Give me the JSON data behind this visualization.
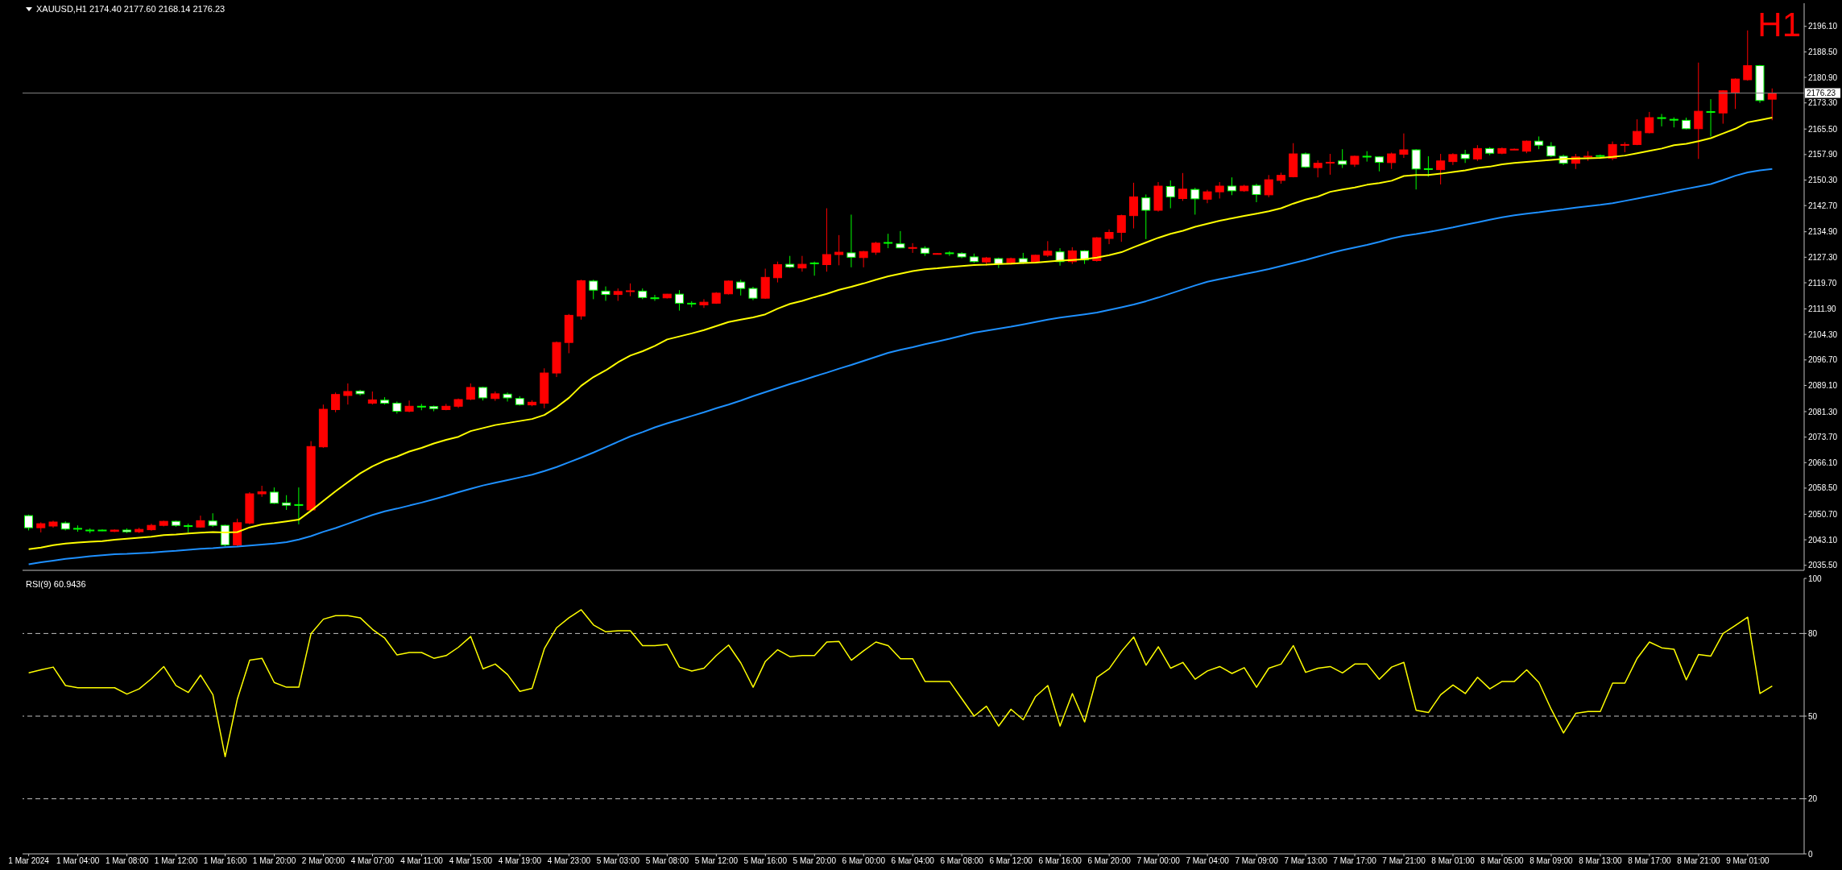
{
  "chart_data": [
    {
      "type": "candlestick",
      "title": "XAUUSD,H1 2174.40 2177.60 2168.14 2176.23",
      "annotations": [
        "H1"
      ],
      "categories": [
        null,
        null,
        null,
        null,
        null,
        null,
        null,
        null,
        null,
        null,
        null,
        null,
        null,
        null,
        null,
        null,
        null,
        null,
        null,
        null,
        null,
        null,
        null,
        null,
        null,
        null,
        null,
        null,
        null,
        null,
        null,
        null,
        null,
        null,
        null,
        null,
        null,
        null,
        null,
        null,
        null,
        null,
        null,
        null,
        null,
        null,
        null,
        null,
        null,
        null,
        null,
        null,
        null,
        null,
        null,
        null,
        null,
        null,
        null,
        null,
        null,
        null,
        null,
        null,
        null,
        null,
        null,
        null,
        null,
        null,
        null,
        null,
        null,
        null,
        null,
        null,
        null,
        null,
        null,
        null,
        null,
        null,
        null,
        null,
        null,
        null,
        null,
        null,
        null,
        null,
        null,
        null,
        null,
        null,
        null,
        null,
        null,
        null,
        null,
        null,
        null,
        null,
        null,
        null,
        null,
        null,
        null,
        null,
        null,
        null,
        null,
        null,
        null,
        null,
        null,
        null,
        null,
        null,
        null,
        null,
        null,
        null,
        null,
        null,
        null,
        null,
        null,
        null,
        null,
        null,
        null,
        null,
        null,
        null,
        null,
        null,
        null,
        null,
        null,
        null,
        null,
        null,
        null
      ],
      "ohlc": [
        [
          2050.3,
          2050.6,
          2045.9,
          2046.7
        ],
        [
          2046.7,
          2048.3,
          2045.3,
          2047.9
        ],
        [
          2047.2,
          2048.8,
          2046.7,
          2048.4
        ],
        [
          2048.1,
          2048.6,
          2045.9,
          2046.3
        ],
        [
          2046.5,
          2047.4,
          2045.5,
          2046.4
        ],
        [
          2046.0,
          2046.5,
          2045.1,
          2045.9
        ],
        [
          2046.0,
          2046.2,
          2045.7,
          2045.9
        ],
        [
          2045.6,
          2046.2,
          2045.4,
          2046.0
        ],
        [
          2046.0,
          2046.5,
          2045.1,
          2045.5
        ],
        [
          2045.5,
          2046.7,
          2045.1,
          2046.2
        ],
        [
          2046.1,
          2047.9,
          2045.8,
          2047.4
        ],
        [
          2047.4,
          2048.8,
          2047.1,
          2048.6
        ],
        [
          2048.6,
          2048.8,
          2047.0,
          2047.4
        ],
        [
          2047.3,
          2047.9,
          2045.3,
          2047.2
        ],
        [
          2046.9,
          2050.3,
          2046.7,
          2048.8
        ],
        [
          2048.7,
          2051.0,
          2046.9,
          2047.4
        ],
        [
          2047.4,
          2047.6,
          2041.2,
          2041.6
        ],
        [
          2041.6,
          2049.4,
          2041.2,
          2048.2
        ],
        [
          2048.1,
          2057.3,
          2047.7,
          2056.8
        ],
        [
          2056.8,
          2059.2,
          2055.9,
          2057.4
        ],
        [
          2057.3,
          2058.7,
          2053.8,
          2054.0
        ],
        [
          2054.1,
          2056.4,
          2052.0,
          2053.4
        ],
        [
          2053.6,
          2058.7,
          2047.7,
          2053.5
        ],
        [
          2052.0,
          2072.5,
          2051.6,
          2070.9
        ],
        [
          2070.8,
          2083.4,
          2070.5,
          2082.0
        ],
        [
          2081.9,
          2087.0,
          2081.1,
          2086.4
        ],
        [
          2086.1,
          2089.7,
          2083.4,
          2087.3
        ],
        [
          2087.4,
          2087.8,
          2086.1,
          2086.6
        ],
        [
          2083.8,
          2087.3,
          2083.4,
          2084.8
        ],
        [
          2084.7,
          2085.6,
          2083.4,
          2083.8
        ],
        [
          2083.8,
          2084.3,
          2080.7,
          2081.4
        ],
        [
          2081.4,
          2084.6,
          2081.1,
          2082.9
        ],
        [
          2082.9,
          2083.6,
          2081.7,
          2082.8
        ],
        [
          2082.8,
          2083.1,
          2081.4,
          2082.2
        ],
        [
          2081.9,
          2083.6,
          2081.7,
          2082.9
        ],
        [
          2082.9,
          2085.2,
          2082.4,
          2084.9
        ],
        [
          2085.0,
          2089.7,
          2084.7,
          2088.5
        ],
        [
          2088.5,
          2088.7,
          2084.6,
          2085.4
        ],
        [
          2085.2,
          2087.3,
          2084.5,
          2086.6
        ],
        [
          2086.5,
          2087.0,
          2084.3,
          2085.4
        ],
        [
          2085.2,
          2085.9,
          2083.1,
          2083.4
        ],
        [
          2083.3,
          2084.7,
          2082.9,
          2084.1
        ],
        [
          2083.8,
          2094.2,
          2082.3,
          2092.8
        ],
        [
          2092.8,
          2102.2,
          2091.6,
          2101.9
        ],
        [
          2101.9,
          2110.4,
          2098.7,
          2110.0
        ],
        [
          2109.8,
          2120.6,
          2108.7,
          2120.3
        ],
        [
          2120.2,
          2120.6,
          2114.8,
          2117.5
        ],
        [
          2117.2,
          2118.6,
          2114.3,
          2116.2
        ],
        [
          2116.2,
          2118.0,
          2114.3,
          2117.1
        ],
        [
          2117.1,
          2119.5,
          2115.7,
          2117.3
        ],
        [
          2117.2,
          2118.0,
          2114.8,
          2115.3
        ],
        [
          2115.2,
          2116.1,
          2114.3,
          2115.1
        ],
        [
          2115.2,
          2116.4,
          2115.0,
          2116.3
        ],
        [
          2116.3,
          2117.5,
          2111.4,
          2113.6
        ],
        [
          2113.6,
          2114.2,
          2112.4,
          2113.5
        ],
        [
          2113.1,
          2114.8,
          2112.2,
          2113.9
        ],
        [
          2113.6,
          2116.9,
          2113.4,
          2116.6
        ],
        [
          2116.4,
          2120.4,
          2116.2,
          2120.2
        ],
        [
          2119.9,
          2120.6,
          2115.9,
          2118.0
        ],
        [
          2118.0,
          2118.5,
          2114.5,
          2115.1
        ],
        [
          2115.1,
          2123.9,
          2114.9,
          2121.3
        ],
        [
          2121.2,
          2126.0,
          2119.8,
          2125.1
        ],
        [
          2125.2,
          2127.7,
          2124.1,
          2124.4
        ],
        [
          2124.1,
          2127.7,
          2123.0,
          2125.2
        ],
        [
          2125.6,
          2126.0,
          2121.8,
          2125.5
        ],
        [
          2125.1,
          2141.9,
          2123.0,
          2128.1
        ],
        [
          2128.1,
          2133.9,
          2124.9,
          2128.8
        ],
        [
          2128.6,
          2140.0,
          2124.3,
          2127.3
        ],
        [
          2127.2,
          2129.2,
          2124.3,
          2129.0
        ],
        [
          2128.8,
          2131.9,
          2128.0,
          2131.5
        ],
        [
          2131.7,
          2134.3,
          2130.0,
          2131.6
        ],
        [
          2131.3,
          2135.1,
          2130.0,
          2130.1
        ],
        [
          2130.0,
          2131.5,
          2128.6,
          2130.2
        ],
        [
          2130.0,
          2130.6,
          2127.7,
          2128.5
        ],
        [
          2128.3,
          2128.5,
          2128.2,
          2128.4
        ],
        [
          2128.6,
          2129.1,
          2127.7,
          2128.5
        ],
        [
          2128.4,
          2128.8,
          2127.0,
          2127.4
        ],
        [
          2127.4,
          2128.4,
          2125.6,
          2126.0
        ],
        [
          2125.9,
          2127.4,
          2124.8,
          2127.1
        ],
        [
          2126.9,
          2127.2,
          2124.1,
          2125.3
        ],
        [
          2125.3,
          2127.2,
          2125.1,
          2126.9
        ],
        [
          2126.9,
          2128.6,
          2125.3,
          2125.7
        ],
        [
          2125.8,
          2128.1,
          2125.6,
          2127.9
        ],
        [
          2127.9,
          2132.1,
          2127.4,
          2129.1
        ],
        [
          2128.9,
          2130.0,
          2124.8,
          2126.0
        ],
        [
          2126.0,
          2130.3,
          2125.3,
          2129.2
        ],
        [
          2129.2,
          2129.4,
          2125.3,
          2126.5
        ],
        [
          2126.3,
          2133.3,
          2126.0,
          2133.1
        ],
        [
          2132.9,
          2135.6,
          2131.2,
          2134.7
        ],
        [
          2134.7,
          2140.0,
          2131.9,
          2139.7
        ],
        [
          2139.7,
          2149.5,
          2135.9,
          2145.3
        ],
        [
          2145.0,
          2146.0,
          2132.7,
          2141.3
        ],
        [
          2141.3,
          2149.7,
          2140.9,
          2148.5
        ],
        [
          2148.4,
          2150.2,
          2141.9,
          2145.3
        ],
        [
          2144.8,
          2152.4,
          2144.1,
          2147.6
        ],
        [
          2147.5,
          2148.0,
          2140.0,
          2144.7
        ],
        [
          2144.6,
          2147.4,
          2143.4,
          2146.8
        ],
        [
          2146.8,
          2149.7,
          2144.8,
          2148.5
        ],
        [
          2148.5,
          2151.1,
          2145.8,
          2147.1
        ],
        [
          2147.1,
          2148.9,
          2146.8,
          2148.5
        ],
        [
          2148.7,
          2149.2,
          2143.7,
          2146.0
        ],
        [
          2145.9,
          2151.8,
          2145.2,
          2150.4
        ],
        [
          2150.2,
          2152.5,
          2149.2,
          2151.7
        ],
        [
          2151.3,
          2161.3,
          2151.1,
          2158.1
        ],
        [
          2158.1,
          2158.5,
          2153.9,
          2154.2
        ],
        [
          2154.0,
          2156.2,
          2151.1,
          2155.3
        ],
        [
          2155.5,
          2158.1,
          2151.9,
          2155.6
        ],
        [
          2156.0,
          2159.5,
          2153.9,
          2155.0
        ],
        [
          2155.0,
          2157.6,
          2154.2,
          2157.4
        ],
        [
          2157.4,
          2158.9,
          2155.8,
          2157.3
        ],
        [
          2157.2,
          2157.4,
          2152.9,
          2155.6
        ],
        [
          2155.5,
          2158.5,
          2153.6,
          2158.1
        ],
        [
          2158.0,
          2164.2,
          2156.9,
          2159.3
        ],
        [
          2159.3,
          2159.5,
          2147.5,
          2153.6
        ],
        [
          2153.7,
          2157.4,
          2151.3,
          2153.6
        ],
        [
          2153.4,
          2158.1,
          2149.0,
          2156.0
        ],
        [
          2155.8,
          2158.3,
          2154.8,
          2157.9
        ],
        [
          2158.0,
          2159.3,
          2155.4,
          2156.7
        ],
        [
          2156.6,
          2160.7,
          2156.0,
          2159.7
        ],
        [
          2159.7,
          2160.1,
          2157.7,
          2158.3
        ],
        [
          2158.3,
          2160.0,
          2158.0,
          2159.7
        ],
        [
          2159.4,
          2159.7,
          2159.3,
          2159.5
        ],
        [
          2158.9,
          2162.1,
          2158.3,
          2161.9
        ],
        [
          2161.9,
          2163.3,
          2159.5,
          2160.7
        ],
        [
          2160.4,
          2161.6,
          2157.1,
          2157.5
        ],
        [
          2157.4,
          2157.9,
          2154.8,
          2155.3
        ],
        [
          2155.3,
          2158.1,
          2153.6,
          2157.2
        ],
        [
          2157.3,
          2158.9,
          2156.0,
          2157.4
        ],
        [
          2157.6,
          2157.9,
          2156.6,
          2157.5
        ],
        [
          2156.8,
          2161.8,
          2156.2,
          2160.9
        ],
        [
          2160.8,
          2161.6,
          2158.6,
          2160.9
        ],
        [
          2160.9,
          2168.4,
          2160.7,
          2164.8
        ],
        [
          2164.4,
          2170.6,
          2164.2,
          2168.9
        ],
        [
          2168.9,
          2170.0,
          2166.3,
          2168.8
        ],
        [
          2168.4,
          2169.0,
          2166.0,
          2168.3
        ],
        [
          2168.1,
          2168.9,
          2165.4,
          2165.6
        ],
        [
          2165.6,
          2185.3,
          2156.6,
          2170.8
        ],
        [
          2170.7,
          2174.4,
          2163.3,
          2170.6
        ],
        [
          2170.3,
          2177.1,
          2167.1,
          2176.9
        ],
        [
          2176.5,
          2180.6,
          2171.5,
          2180.4
        ],
        [
          2180.2,
          2194.9,
          2179.9,
          2184.4
        ],
        [
          2184.4,
          2184.6,
          2173.3,
          2174.0
        ],
        [
          2174.4,
          2177.6,
          2168.14,
          2176.23
        ]
      ],
      "colors": [
        "#ffffff",
        "#ff0000",
        "#ff0000",
        "#ffffff",
        "#ffffff",
        "#ffffff",
        "#ffffff",
        "#ff0000",
        "#ffffff",
        "#ff0000",
        "#ff0000",
        "#ff0000",
        "#ffffff",
        "#ffffff",
        "#ff0000",
        "#ffffff",
        "#ffffff",
        "#ff0000",
        "#ff0000",
        "#ff0000",
        "#ffffff",
        "#ffffff",
        "#ffffff",
        "#ff0000",
        "#ff0000",
        "#ff0000",
        "#ff0000",
        "#ffffff",
        "#ff0000",
        "#ffffff",
        "#ffffff",
        "#ff0000",
        "#ffffff",
        "#ffffff",
        "#ff0000",
        "#ff0000",
        "#ff0000",
        "#ffffff",
        "#ff0000",
        "#ffffff",
        "#ffffff",
        "#ff0000",
        "#ff0000",
        "#ff0000",
        "#ff0000",
        "#ff0000",
        "#ffffff",
        "#ffffff",
        "#ff0000",
        "#ff0000",
        "#ffffff",
        "#ffffff",
        "#ff0000",
        "#ffffff",
        "#ffffff",
        "#ff0000",
        "#ff0000",
        "#ff0000",
        "#ffffff",
        "#ffffff",
        "#ff0000",
        "#ff0000",
        "#ffffff",
        "#ff0000",
        "#ffffff",
        "#ff0000",
        "#ff0000",
        "#ffffff",
        "#ff0000",
        "#ff0000",
        "#ffffff",
        "#ffffff",
        "#ff0000",
        "#ffffff",
        "#ff0000",
        "#ffffff",
        "#ffffff",
        "#ffffff",
        "#ff0000",
        "#ffffff",
        "#ff0000",
        "#ffffff",
        "#ff0000",
        "#ff0000",
        "#ffffff",
        "#ff0000",
        "#ffffff",
        "#ff0000",
        "#ff0000",
        "#ff0000",
        "#ff0000",
        "#ffffff",
        "#ff0000",
        "#ffffff",
        "#ff0000",
        "#ffffff",
        "#ff0000",
        "#ff0000",
        "#ffffff",
        "#ff0000",
        "#ffffff",
        "#ff0000",
        "#ff0000",
        "#ff0000",
        "#ffffff",
        "#ff0000",
        "#ff0000",
        "#ffffff",
        "#ff0000",
        "#ffffff",
        "#ffffff",
        "#ff0000",
        "#ff0000",
        "#ffffff",
        "#ffffff",
        "#ff0000",
        "#ff0000",
        "#ffffff",
        "#ff0000",
        "#ffffff",
        "#ff0000",
        "#ff0000",
        "#ff0000",
        "#ffffff",
        "#ffffff",
        "#ffffff",
        "#ff0000",
        "#ff0000",
        "#ffffff",
        "#ff0000",
        "#ff0000",
        "#ff0000",
        "#ff0000",
        "#ffffff",
        "#ffffff",
        "#ffffff",
        "#ff0000",
        "#ffffff",
        "#ff0000",
        "#ff0000",
        "#ff0000",
        "#ffffff",
        "#ff0000"
      ],
      "series": [
        {
          "type": "line",
          "color": "#ffff00",
          "values": [
            2040.3,
            2040.8,
            2041.5,
            2042.0,
            2042.3,
            2042.5,
            2042.7,
            2043.1,
            2043.4,
            2043.7,
            2044.0,
            2044.5,
            2044.7,
            2045.0,
            2045.2,
            2045.4,
            2045.3,
            2045.4,
            2046.8,
            2047.7,
            2048.1,
            2048.6,
            2049.1,
            2051.8,
            2054.7,
            2057.6,
            2060.3,
            2062.9,
            2065.0,
            2066.7,
            2067.9,
            2069.4,
            2070.5,
            2071.8,
            2072.9,
            2073.8,
            2075.5,
            2076.4,
            2077.3,
            2077.9,
            2078.5,
            2079.1,
            2080.3,
            2082.6,
            2085.4,
            2089.0,
            2091.6,
            2093.6,
            2096.0,
            2098.0,
            2099.3,
            2100.9,
            2102.8,
            2103.7,
            2104.6,
            2105.6,
            2106.8,
            2108.0,
            2108.7,
            2109.4,
            2110.3,
            2112.0,
            2113.4,
            2114.3,
            2115.4,
            2116.4,
            2117.6,
            2118.5,
            2119.5,
            2120.6,
            2121.6,
            2122.4,
            2123.2,
            2123.7,
            2124.0,
            2124.4,
            2124.7,
            2125.0,
            2125.1,
            2125.3,
            2125.4,
            2125.6,
            2125.7,
            2126.0,
            2126.3,
            2126.5,
            2126.7,
            2127.2,
            2127.9,
            2128.8,
            2130.3,
            2131.7,
            2133.1,
            2134.3,
            2135.2,
            2136.4,
            2137.3,
            2138.2,
            2138.9,
            2139.6,
            2140.3,
            2141.0,
            2141.9,
            2143.3,
            2144.5,
            2145.4,
            2146.8,
            2147.5,
            2148.1,
            2148.9,
            2149.4,
            2150.1,
            2151.5,
            2151.8,
            2151.8,
            2152.2,
            2152.7,
            2153.2,
            2153.9,
            2154.3,
            2155.0,
            2155.4,
            2155.7,
            2156.0,
            2156.3,
            2156.6,
            2156.7,
            2156.8,
            2156.9,
            2157.2,
            2157.6,
            2158.3,
            2159.0,
            2159.7,
            2160.7,
            2161.1,
            2161.9,
            2162.8,
            2164.2,
            2165.6,
            2167.5,
            2168.2,
            2168.9
          ]
        },
        {
          "type": "line",
          "color": "#1e90ff",
          "values": [
            2035.8,
            2036.4,
            2036.9,
            2037.4,
            2037.8,
            2038.2,
            2038.5,
            2038.8,
            2038.9,
            2039.1,
            2039.3,
            2039.6,
            2039.8,
            2040.1,
            2040.4,
            2040.6,
            2040.9,
            2041.1,
            2041.4,
            2041.7,
            2042.0,
            2042.4,
            2043.2,
            2044.2,
            2045.5,
            2046.6,
            2047.9,
            2049.2,
            2050.5,
            2051.6,
            2052.4,
            2053.3,
            2054.2,
            2055.2,
            2056.2,
            2057.3,
            2058.3,
            2059.3,
            2060.1,
            2060.9,
            2061.7,
            2062.5,
            2063.6,
            2064.8,
            2066.2,
            2067.6,
            2069.1,
            2070.7,
            2072.3,
            2073.9,
            2075.2,
            2076.6,
            2077.8,
            2078.9,
            2080.0,
            2081.1,
            2082.3,
            2083.4,
            2084.6,
            2085.9,
            2087.1,
            2088.3,
            2089.5,
            2090.6,
            2091.8,
            2092.9,
            2094.1,
            2095.2,
            2096.4,
            2097.6,
            2098.8,
            2099.7,
            2100.5,
            2101.4,
            2102.2,
            2103.0,
            2103.9,
            2104.8,
            2105.4,
            2106.0,
            2106.6,
            2107.3,
            2108.0,
            2108.7,
            2109.3,
            2109.8,
            2110.3,
            2110.8,
            2111.6,
            2112.4,
            2113.2,
            2114.2,
            2115.3,
            2116.5,
            2117.7,
            2118.9,
            2120.0,
            2120.8,
            2121.5,
            2122.3,
            2123.0,
            2123.8,
            2124.7,
            2125.6,
            2126.5,
            2127.5,
            2128.5,
            2129.4,
            2130.2,
            2131.0,
            2131.9,
            2132.9,
            2133.7,
            2134.2,
            2134.8,
            2135.5,
            2136.2,
            2137.0,
            2137.7,
            2138.5,
            2139.2,
            2139.8,
            2140.3,
            2140.7,
            2141.2,
            2141.6,
            2142.1,
            2142.5,
            2142.9,
            2143.4,
            2144.1,
            2144.8,
            2145.5,
            2146.2,
            2147.0,
            2147.7,
            2148.4,
            2149.1,
            2150.3,
            2151.6,
            2152.6,
            2153.2,
            2153.6
          ]
        }
      ],
      "ylim": [
        2034,
        2203
      ],
      "yticks": [
        {
          "value": 2035.5,
          "label": "2035.50"
        },
        {
          "value": 2043.1,
          "label": "2043.10"
        },
        {
          "value": 2050.7,
          "label": "2050.70"
        },
        {
          "value": 2058.5,
          "label": "2058.50"
        },
        {
          "value": 2066.1,
          "label": "2066.10"
        },
        {
          "value": 2073.7,
          "label": "2073.70"
        },
        {
          "value": 2081.3,
          "label": "2081.30"
        },
        {
          "value": 2089.1,
          "label": "2089.10"
        },
        {
          "value": 2096.7,
          "label": "2096.70"
        },
        {
          "value": 2104.3,
          "label": "2104.30"
        },
        {
          "value": 2111.9,
          "label": "2111.90"
        },
        {
          "value": 2119.7,
          "label": "2119.70"
        },
        {
          "value": 2127.3,
          "label": "2127.30"
        },
        {
          "value": 2134.9,
          "label": "2134.90"
        },
        {
          "value": 2142.7,
          "label": "2142.70"
        },
        {
          "value": 2150.3,
          "label": "2150.30"
        },
        {
          "value": 2157.9,
          "label": "2157.90"
        },
        {
          "value": 2165.5,
          "label": "2165.50"
        },
        {
          "value": 2173.3,
          "label": "2173.30"
        },
        {
          "value": 2180.9,
          "label": "2180.90"
        },
        {
          "value": 2188.5,
          "label": "2188.50"
        },
        {
          "value": 2196.1,
          "label": "2196.10"
        }
      ],
      "ref_lines": [
        {
          "axis": "y",
          "value": 2176.23,
          "label": "2176.23",
          "color": "#808080"
        }
      ],
      "tick_labels": "y"
    },
    {
      "type": "line",
      "title": "RSI(9) 60.9436",
      "categories": [
        "1 Mar 2024",
        null,
        null,
        null,
        "1 Mar 04:00",
        null,
        null,
        null,
        "1 Mar 08:00",
        null,
        null,
        null,
        "1 Mar 12:00",
        null,
        null,
        null,
        "1 Mar 16:00",
        null,
        null,
        null,
        "1 Mar 20:00",
        null,
        null,
        null,
        "2 Mar 00:00",
        null,
        null,
        null,
        "4 Mar 07:00",
        null,
        null,
        null,
        "4 Mar 11:00",
        null,
        null,
        null,
        "4 Mar 15:00",
        null,
        null,
        null,
        "4 Mar 19:00",
        null,
        null,
        null,
        "4 Mar 23:00",
        null,
        null,
        null,
        "5 Mar 03:00",
        null,
        null,
        null,
        "5 Mar 08:00",
        null,
        null,
        null,
        "5 Mar 12:00",
        null,
        null,
        null,
        "5 Mar 16:00",
        null,
        null,
        null,
        "5 Mar 20:00",
        null,
        null,
        null,
        "6 Mar 00:00",
        null,
        null,
        null,
        "6 Mar 04:00",
        null,
        null,
        null,
        "6 Mar 08:00",
        null,
        null,
        null,
        "6 Mar 12:00",
        null,
        null,
        null,
        "6 Mar 16:00",
        null,
        null,
        null,
        "6 Mar 20:00",
        null,
        null,
        null,
        "7 Mar 00:00",
        null,
        null,
        null,
        "7 Mar 04:00",
        null,
        null,
        null,
        "7 Mar 09:00",
        null,
        null,
        null,
        "7 Mar 13:00",
        null,
        null,
        null,
        "7 Mar 17:00",
        null,
        null,
        null,
        "7 Mar 21:00",
        null,
        null,
        null,
        "8 Mar 01:00",
        null,
        null,
        null,
        "8 Mar 05:00",
        null,
        null,
        null,
        "8 Mar 09:00",
        null,
        null,
        null,
        "8 Mar 13:00",
        null,
        null,
        null,
        "8 Mar 17:00",
        null,
        null,
        null,
        "8 Mar 21:00",
        null,
        null,
        null,
        "9 Mar 01:00",
        null,
        null
      ],
      "color": "#ffff00",
      "values": [
        65.7,
        66.8,
        67.8,
        61.1,
        60.3,
        60.3,
        60.3,
        60.3,
        58.0,
        59.9,
        63.6,
        68.0,
        61.1,
        58.6,
        64.9,
        57.8,
        35.3,
        56.3,
        70.3,
        71.0,
        62.2,
        60.5,
        60.5,
        80.0,
        85.2,
        86.5,
        86.5,
        85.7,
        81.5,
        78.3,
        72.2,
        73.1,
        73.1,
        71.0,
        72.0,
        75.0,
        78.9,
        67.2,
        68.9,
        65.1,
        59.0,
        60.1,
        74.5,
        82.1,
        85.7,
        88.6,
        83.1,
        80.6,
        81.0,
        81.0,
        75.6,
        75.6,
        76.0,
        67.8,
        66.4,
        67.4,
        72.0,
        75.8,
        69.3,
        60.5,
        69.9,
        74.1,
        71.6,
        72.0,
        72.0,
        76.9,
        77.1,
        70.3,
        73.7,
        76.9,
        75.6,
        70.8,
        70.8,
        62.6,
        62.6,
        62.6,
        56.3,
        50.0,
        53.6,
        46.4,
        52.5,
        48.7,
        57.1,
        61.1,
        46.4,
        58.2,
        47.9,
        64.1,
        67.2,
        73.5,
        78.7,
        68.5,
        75.2,
        67.4,
        69.5,
        63.4,
        66.4,
        68.0,
        65.5,
        67.6,
        60.5,
        67.4,
        68.9,
        75.6,
        65.9,
        67.4,
        68.0,
        65.7,
        68.9,
        68.9,
        63.4,
        67.8,
        69.5,
        52.1,
        51.3,
        57.8,
        61.3,
        58.2,
        64.1,
        59.9,
        62.6,
        62.6,
        66.8,
        62.2,
        52.5,
        43.9,
        51.0,
        51.7,
        51.7,
        62.0,
        62.0,
        71.0,
        76.9,
        74.8,
        74.3,
        63.2,
        72.4,
        71.8,
        80.0,
        82.9,
        85.9,
        58.2,
        60.9
      ],
      "ylim": [
        0,
        100
      ],
      "yticks": [
        0,
        20,
        50,
        80,
        100
      ],
      "ref_lines": [
        {
          "axis": "y",
          "value": 80,
          "color": "#c0c0c0",
          "line_style": "dashed"
        },
        {
          "axis": "y",
          "value": 50,
          "color": "#c0c0c0",
          "line_style": "dashed"
        },
        {
          "axis": "y",
          "value": 20,
          "color": "#c0c0c0",
          "line_style": "dashed"
        }
      ]
    }
  ]
}
